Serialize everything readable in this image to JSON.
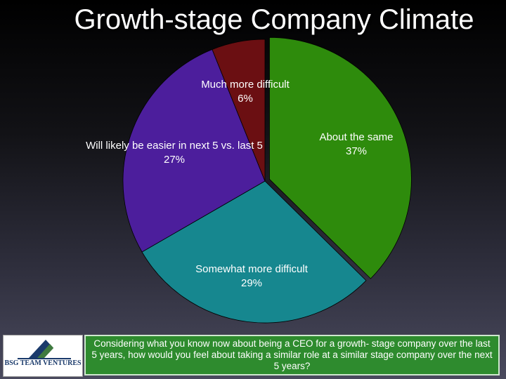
{
  "title": "Growth-stage Company Climate",
  "chart_data": {
    "type": "pie",
    "title": "Growth-stage Company Climate",
    "slices": [
      {
        "label": "About the same",
        "value": 37,
        "value_label": "37%",
        "color": "#2e8b0c"
      },
      {
        "label": "Somewhat more difficult",
        "value": 29,
        "value_label": "29%",
        "color": "#16878f"
      },
      {
        "label": "Will likely be easier in next 5 vs. last 5",
        "value": 27,
        "value_label": "27%",
        "color": "#4c1e9c"
      },
      {
        "label": "Much more difficult",
        "value": 6,
        "value_label": "6%",
        "color": "#6b0f12"
      }
    ],
    "start": "12 o'clock",
    "direction": "clockwise",
    "exploded_slice": "About the same"
  },
  "footer": {
    "logo_text": "BSG TEAM VENTURES",
    "question": "Considering what you know now about being a CEO for a growth- stage company over the last 5 years, how would you feel about taking a similar role at a similar stage company over the next 5 years?"
  }
}
